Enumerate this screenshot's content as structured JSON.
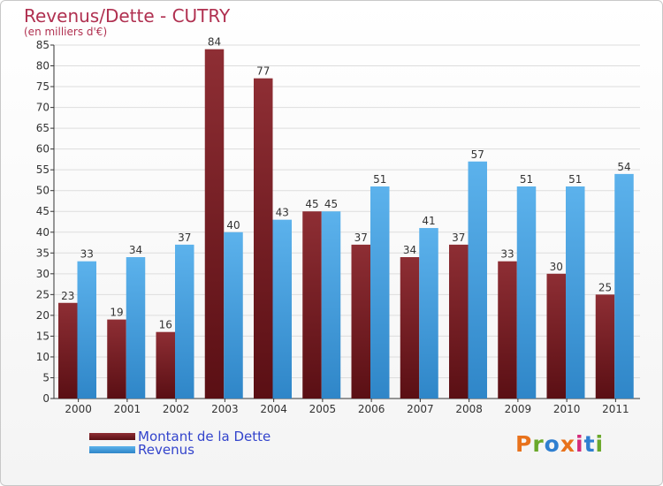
{
  "header": {
    "title": "Revenus/Dette - CUTRY",
    "subtitle": "(en milliers d'€)"
  },
  "chart_data": {
    "type": "bar",
    "categories": [
      "2000",
      "2001",
      "2002",
      "2003",
      "2004",
      "2005",
      "2006",
      "2007",
      "2008",
      "2009",
      "2010",
      "2011"
    ],
    "series": [
      {
        "name": "Montant de la Dette",
        "values": [
          23,
          19,
          16,
          84,
          77,
          45,
          37,
          34,
          37,
          33,
          30,
          25
        ],
        "color": "#7a1e24"
      },
      {
        "name": "Revenus",
        "values": [
          33,
          34,
          37,
          40,
          43,
          45,
          51,
          41,
          57,
          51,
          51,
          54
        ],
        "color": "#4aa3e0"
      }
    ],
    "title": "Revenus/Dette - CUTRY",
    "ylabel": "(en milliers d'€)",
    "xlabel": "",
    "ylim": [
      0,
      85
    ],
    "ytick_step": 5,
    "grid": true,
    "legend_position": "bottom-left"
  },
  "logo": {
    "text": "Proxiti",
    "colors": [
      "#e8721c",
      "#6aa82a",
      "#2f7fd0",
      "#e8721c",
      "#d42b7a",
      "#2f7fd0",
      "#6aa82a"
    ]
  }
}
